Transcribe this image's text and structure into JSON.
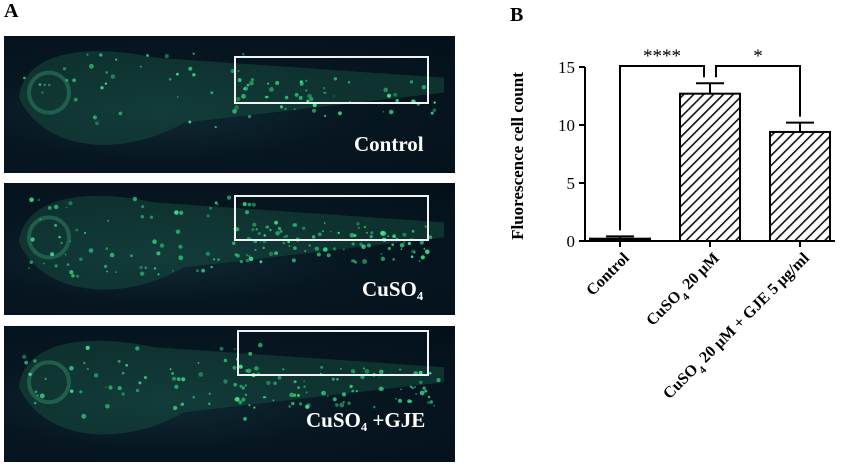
{
  "panel_a": {
    "label": "A",
    "images": [
      {
        "caption": "Control",
        "description": "zebrafish larva, few fluorescent hair cells"
      },
      {
        "caption": "CuSO₄",
        "description": "zebrafish larva, many fluorescent cells in lateral line"
      },
      {
        "caption": "CuSO₄ +GJE",
        "description": "zebrafish larva, moderate fluorescent cells"
      }
    ]
  },
  "panel_b": {
    "label": "B"
  },
  "chart_data": {
    "type": "bar",
    "ylabel": "Fluorescence cell count",
    "xlabel": "",
    "ylim": [
      0,
      15
    ],
    "yticks": [
      0,
      5,
      10,
      15
    ],
    "categories": [
      "Control",
      "CuSO4 20 μM",
      "CuSO4 20 μM + GJE 5 μg/ml"
    ],
    "category_labels": [
      {
        "main": "Control",
        "sub": "",
        "rest": ""
      },
      {
        "main": "CuSO",
        "sub": "4",
        "rest": " 20 μM"
      },
      {
        "main": "CuSO",
        "sub": "4",
        "rest": " 20 μM + GJE 5 μg/ml"
      }
    ],
    "values": [
      0.2,
      12.7,
      9.4
    ],
    "errors": [
      0.2,
      0.9,
      0.8
    ],
    "patterns": [
      "solid",
      "hatched",
      "hatched"
    ],
    "significance": [
      {
        "from": 0,
        "to": 1,
        "label": "****"
      },
      {
        "from": 1,
        "to": 2,
        "label": "*"
      }
    ],
    "grid": false
  }
}
